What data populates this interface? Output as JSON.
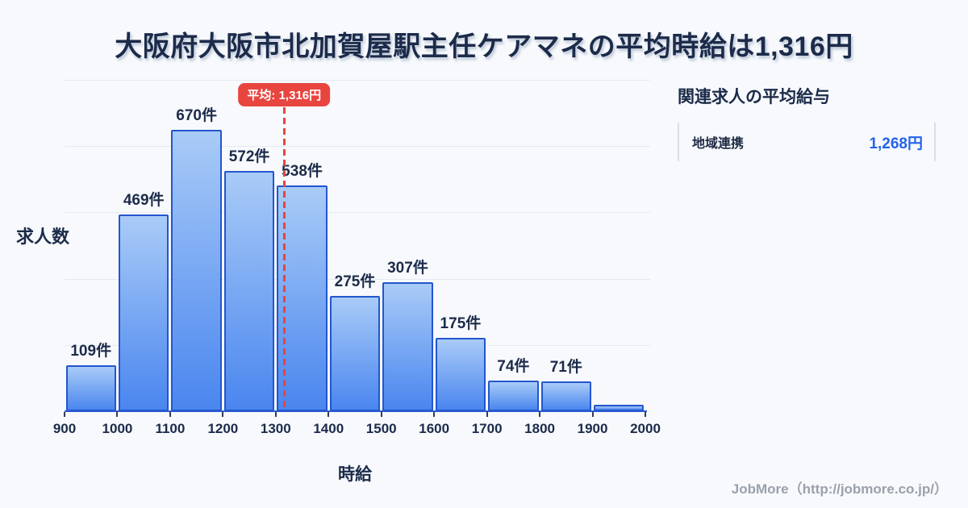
{
  "title": "大阪府大阪市北加賀屋駅主任ケアマネの平均時給は1,316円",
  "chart_data": {
    "type": "bar",
    "title": "大阪府大阪市北加賀屋駅主任ケアマネの平均時給は1,316円",
    "xlabel": "時給",
    "ylabel": "求人数",
    "x_ticks": [
      "900",
      "1000",
      "1100",
      "1200",
      "1300",
      "1400",
      "1500",
      "1600",
      "1700",
      "1800",
      "1900",
      "2000"
    ],
    "bin_edges": [
      900,
      1000,
      1100,
      1200,
      1300,
      1400,
      1500,
      1600,
      1700,
      1800,
      1900,
      2000
    ],
    "values": [
      109,
      469,
      670,
      572,
      538,
      275,
      307,
      175,
      74,
      71,
      15
    ],
    "bar_labels": [
      "109件",
      "469件",
      "670件",
      "572件",
      "538件",
      "275件",
      "307件",
      "175件",
      "74件",
      "71件",
      ""
    ],
    "xlim": [
      900,
      2000
    ],
    "ylim": [
      0,
      800
    ],
    "grid": true,
    "legend": false,
    "average_line": {
      "value": 1316,
      "label": "平均: 1,316円"
    }
  },
  "side_panel": {
    "heading": "関連求人の平均給与",
    "rows": [
      {
        "label": "地域連携",
        "value": "1,268円"
      }
    ]
  },
  "footer": {
    "credit": "JobMore（http://jobmore.co.jp/）"
  },
  "colors": {
    "background": "#f7f9fc",
    "title_text": "#1c2b4a",
    "bar_gradient_top": "#a9cbf7",
    "bar_gradient_bottom": "#4a86ef",
    "bar_border": "#2356cf",
    "axis_line": "#2b5ad0",
    "gridline": "#e4e9f2",
    "average_red": "#e8453f",
    "value_blue": "#2563eb",
    "footer_gray": "#9aa1ab"
  }
}
